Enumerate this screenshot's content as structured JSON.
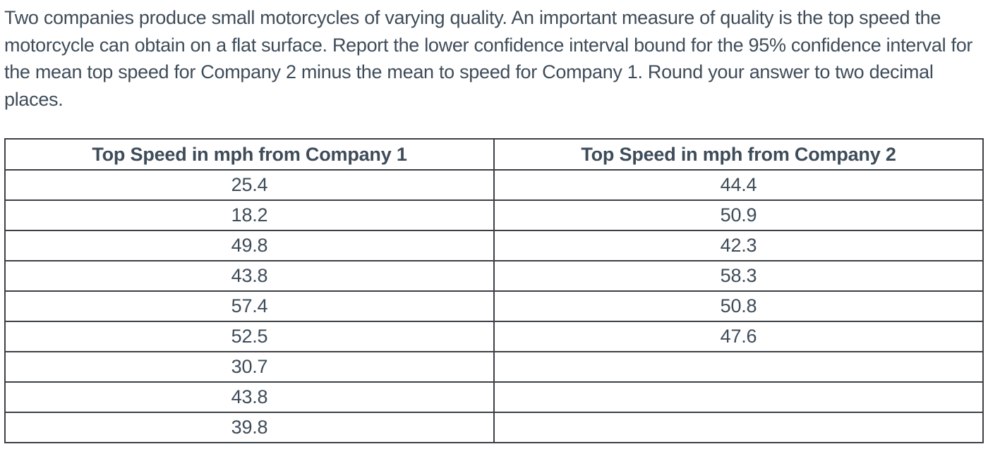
{
  "question": {
    "text": "Two companies produce small motorcycles of varying quality. An important measure of quality is the top speed the motorcycle can obtain on a flat surface. Report the lower confidence interval bound for the 95% confidence interval for the mean top speed for Company 2 minus the mean to speed for Company 1. Round your answer to two decimal places."
  },
  "table": {
    "headers": [
      "Top Speed in mph from Company 1",
      "Top Speed in mph from Company 2"
    ],
    "rows": [
      [
        "25.4",
        "44.4"
      ],
      [
        "18.2",
        "50.9"
      ],
      [
        "49.8",
        "42.3"
      ],
      [
        "43.8",
        "58.3"
      ],
      [
        "57.4",
        "50.8"
      ],
      [
        "52.5",
        "47.6"
      ],
      [
        "30.7",
        ""
      ],
      [
        "43.8",
        ""
      ],
      [
        "39.8",
        ""
      ]
    ]
  },
  "colors": {
    "text": "#3e4c59",
    "border": "#3b4045",
    "background": "#ffffff"
  }
}
